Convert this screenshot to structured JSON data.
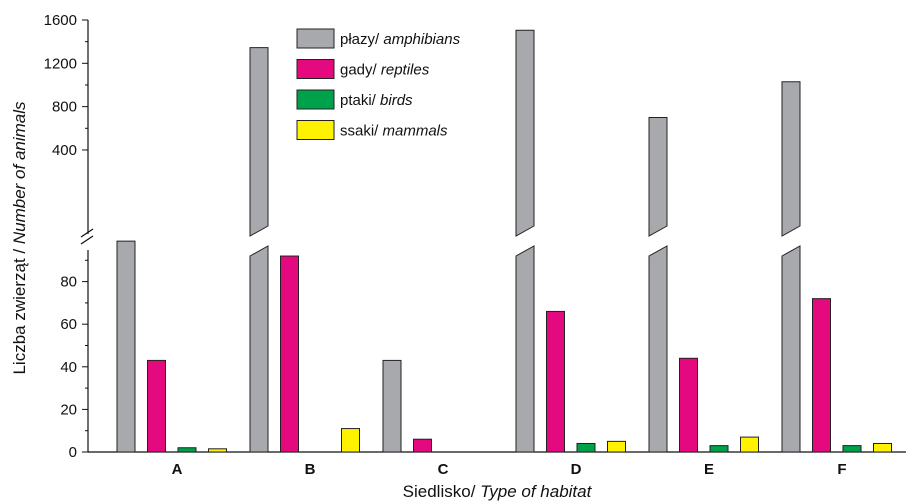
{
  "chart_data": {
    "type": "bar",
    "xlabel": {
      "pl": "Siedlisko/ ",
      "en": "Type of habitat"
    },
    "ylabel": {
      "pl": "Liczba zwierząt / ",
      "en": "Number of animals"
    },
    "y_axis": {
      "broken": true,
      "lower_range": [
        0,
        100
      ],
      "upper_range": [
        300,
        1600
      ],
      "lower_ticks": [
        "0",
        "20",
        "40",
        "60",
        "80"
      ],
      "upper_ticks": [
        "400",
        "800",
        "1200",
        "1600"
      ]
    },
    "legend_position": "top-center",
    "categories": [
      "A",
      "B",
      "C",
      "D",
      "E",
      "F"
    ],
    "series": [
      {
        "name": {
          "pl": "płazy/ ",
          "en": "amphibians"
        },
        "color": "#a8a9ad",
        "values": [
          300,
          1345,
          43,
          1505,
          700,
          1030
        ]
      },
      {
        "name": {
          "pl": "gady/ ",
          "en": "reptiles"
        },
        "color": "#e5097f",
        "values": [
          43,
          92,
          6,
          66,
          44,
          72
        ]
      },
      {
        "name": {
          "pl": "ptaki/ ",
          "en": "birds"
        },
        "color": "#00a14b",
        "values": [
          2,
          0,
          0,
          4,
          3,
          3
        ]
      },
      {
        "name": {
          "pl": "ssaki/ ",
          "en": "mammals"
        },
        "color": "#fff200",
        "values": [
          1.5,
          11,
          0,
          5,
          7,
          4
        ]
      }
    ]
  }
}
